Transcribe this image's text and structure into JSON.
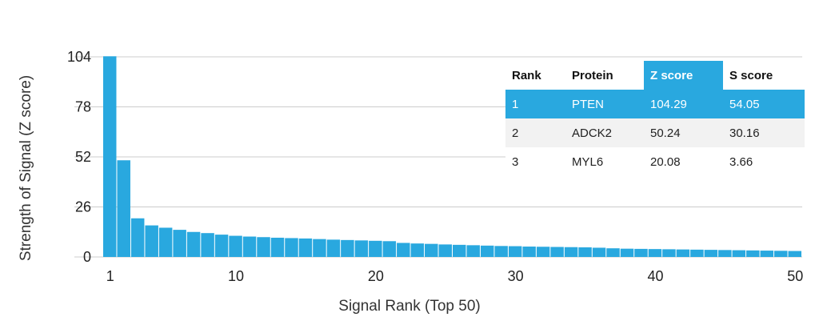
{
  "chart_data": {
    "type": "bar",
    "xlabel": "Signal Rank (Top 50)",
    "ylabel": "Strength of Signal (Z score)",
    "ylim": [
      0,
      104
    ],
    "yticks": [
      0,
      26,
      52,
      78,
      104
    ],
    "xticks": [
      1,
      10,
      20,
      30,
      40,
      50
    ],
    "grid": true,
    "bar_color": "#29a8df",
    "categories": [
      1,
      2,
      3,
      4,
      5,
      6,
      7,
      8,
      9,
      10,
      11,
      12,
      13,
      14,
      15,
      16,
      17,
      18,
      19,
      20,
      21,
      22,
      23,
      24,
      25,
      26,
      27,
      28,
      29,
      30,
      31,
      32,
      33,
      34,
      35,
      36,
      37,
      38,
      39,
      40,
      41,
      42,
      43,
      44,
      45,
      46,
      47,
      48,
      49,
      50
    ],
    "values": [
      104.29,
      50.24,
      20.08,
      16.4,
      15.2,
      14.1,
      13.0,
      12.4,
      11.6,
      11.0,
      10.6,
      10.3,
      10.0,
      9.8,
      9.6,
      9.3,
      9.0,
      8.8,
      8.6,
      8.4,
      8.2,
      7.3,
      7.0,
      6.8,
      6.5,
      6.3,
      6.1,
      5.9,
      5.7,
      5.6,
      5.4,
      5.3,
      5.2,
      5.1,
      5.0,
      4.8,
      4.5,
      4.3,
      4.2,
      4.1,
      4.0,
      3.9,
      3.8,
      3.7,
      3.6,
      3.5,
      3.4,
      3.3,
      3.2,
      3.1
    ]
  },
  "table": {
    "headers": [
      "Rank",
      "Protein",
      "Z score",
      "S score"
    ],
    "highlight_header": "Z score",
    "rows": [
      [
        "1",
        "PTEN",
        "104.29",
        "54.05"
      ],
      [
        "2",
        "ADCK2",
        "50.24",
        "30.16"
      ],
      [
        "3",
        "MYL6",
        "20.08",
        "3.66"
      ]
    ]
  },
  "colors": {
    "accent": "#29a8df",
    "grid": "#cccccc",
    "row_alt": "#f2f2f2"
  }
}
